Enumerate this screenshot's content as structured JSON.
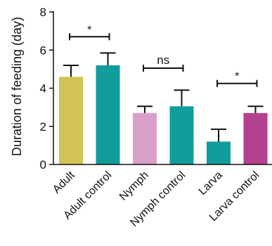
{
  "chart_data": {
    "type": "bar",
    "ylabel": "Duration of feeding (day)",
    "ylim": [
      0,
      8
    ],
    "yticks": [
      0,
      2,
      4,
      6,
      8
    ],
    "categories": [
      "Adult",
      "Adult control",
      "Nymph",
      "Nymph control",
      "Larva",
      "Larva control"
    ],
    "values": [
      4.6,
      5.2,
      2.7,
      3.05,
      1.2,
      2.7
    ],
    "error_upper": [
      5.2,
      5.85,
      3.05,
      3.9,
      1.85,
      3.05
    ],
    "bar_colors": [
      "#d1c455",
      "#119d9b",
      "#d8a0c8",
      "#119d9b",
      "#119d9b",
      "#b5408f"
    ],
    "significance": [
      {
        "from": 0,
        "to": 1,
        "label": "*",
        "y": 6.7
      },
      {
        "from": 2,
        "to": 3,
        "label": "ns",
        "y": 5.05
      },
      {
        "from": 4,
        "to": 5,
        "label": "*",
        "y": 4.25
      }
    ],
    "grid": false
  }
}
